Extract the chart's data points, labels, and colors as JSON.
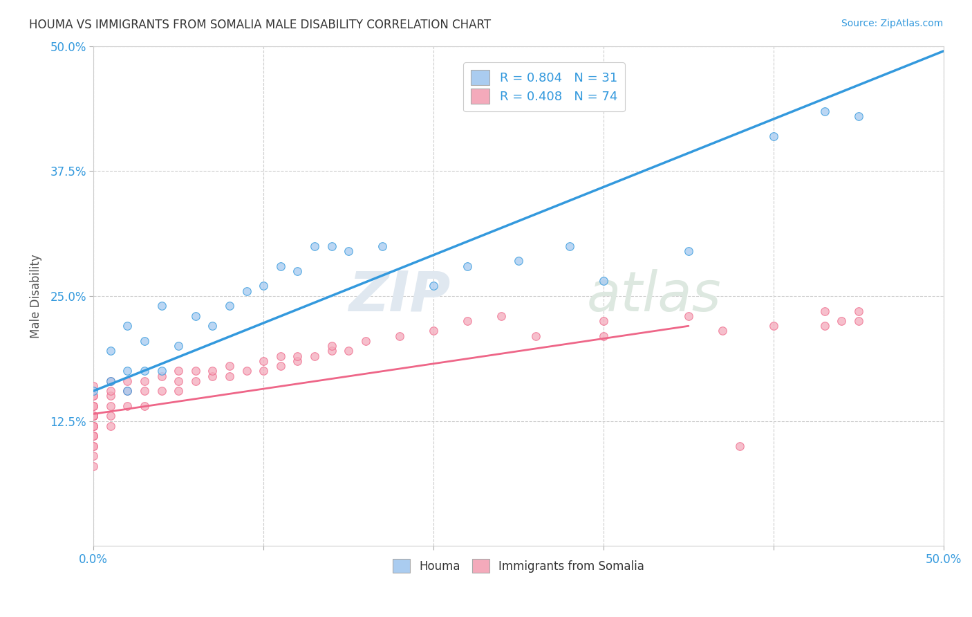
{
  "title": "HOUMA VS IMMIGRANTS FROM SOMALIA MALE DISABILITY CORRELATION CHART",
  "source_text": "Source: ZipAtlas.com",
  "ylabel": "Male Disability",
  "xlim": [
    0.0,
    0.5
  ],
  "ylim": [
    0.0,
    0.5
  ],
  "houma_color": "#aaccf0",
  "somalia_color": "#f4aabb",
  "houma_line_color": "#3399dd",
  "somalia_line_color": "#ee6688",
  "houma_R": 0.804,
  "houma_N": 31,
  "somalia_R": 0.408,
  "somalia_N": 74,
  "watermark_text": "ZIPatlas",
  "legend_color": "#3399dd",
  "houma_line_x": [
    0.0,
    0.5
  ],
  "houma_line_y": [
    0.155,
    0.495
  ],
  "somalia_line_x": [
    0.0,
    0.35
  ],
  "somalia_line_y": [
    0.132,
    0.22
  ],
  "houma_scatter_x": [
    0.0,
    0.01,
    0.01,
    0.02,
    0.02,
    0.02,
    0.03,
    0.03,
    0.04,
    0.04,
    0.05,
    0.06,
    0.07,
    0.08,
    0.09,
    0.1,
    0.11,
    0.12,
    0.13,
    0.14,
    0.15,
    0.17,
    0.2,
    0.22,
    0.25,
    0.28,
    0.3,
    0.35,
    0.4,
    0.43,
    0.45
  ],
  "houma_scatter_y": [
    0.155,
    0.165,
    0.195,
    0.155,
    0.175,
    0.22,
    0.175,
    0.205,
    0.175,
    0.24,
    0.2,
    0.23,
    0.22,
    0.24,
    0.255,
    0.26,
    0.28,
    0.275,
    0.3,
    0.3,
    0.295,
    0.3,
    0.26,
    0.28,
    0.285,
    0.3,
    0.265,
    0.295,
    0.41,
    0.435,
    0.43
  ],
  "somalia_scatter_x": [
    0.0,
    0.0,
    0.0,
    0.0,
    0.0,
    0.0,
    0.0,
    0.0,
    0.0,
    0.0,
    0.0,
    0.0,
    0.0,
    0.0,
    0.0,
    0.0,
    0.0,
    0.0,
    0.0,
    0.0,
    0.0,
    0.0,
    0.0,
    0.01,
    0.01,
    0.01,
    0.01,
    0.01,
    0.01,
    0.02,
    0.02,
    0.02,
    0.03,
    0.03,
    0.03,
    0.04,
    0.04,
    0.05,
    0.05,
    0.05,
    0.06,
    0.06,
    0.07,
    0.07,
    0.08,
    0.08,
    0.09,
    0.1,
    0.1,
    0.11,
    0.11,
    0.12,
    0.12,
    0.13,
    0.14,
    0.14,
    0.15,
    0.16,
    0.18,
    0.2,
    0.22,
    0.24,
    0.26,
    0.3,
    0.3,
    0.35,
    0.37,
    0.38,
    0.4,
    0.43,
    0.43,
    0.44,
    0.45,
    0.45
  ],
  "somalia_scatter_y": [
    0.08,
    0.09,
    0.1,
    0.1,
    0.11,
    0.11,
    0.11,
    0.12,
    0.12,
    0.12,
    0.12,
    0.13,
    0.13,
    0.13,
    0.13,
    0.13,
    0.13,
    0.14,
    0.14,
    0.14,
    0.15,
    0.15,
    0.16,
    0.12,
    0.13,
    0.14,
    0.15,
    0.155,
    0.165,
    0.14,
    0.155,
    0.165,
    0.14,
    0.155,
    0.165,
    0.155,
    0.17,
    0.155,
    0.165,
    0.175,
    0.165,
    0.175,
    0.17,
    0.175,
    0.17,
    0.18,
    0.175,
    0.175,
    0.185,
    0.18,
    0.19,
    0.185,
    0.19,
    0.19,
    0.195,
    0.2,
    0.195,
    0.205,
    0.21,
    0.215,
    0.225,
    0.23,
    0.21,
    0.21,
    0.225,
    0.23,
    0.215,
    0.1,
    0.22,
    0.22,
    0.235,
    0.225,
    0.225,
    0.235
  ]
}
